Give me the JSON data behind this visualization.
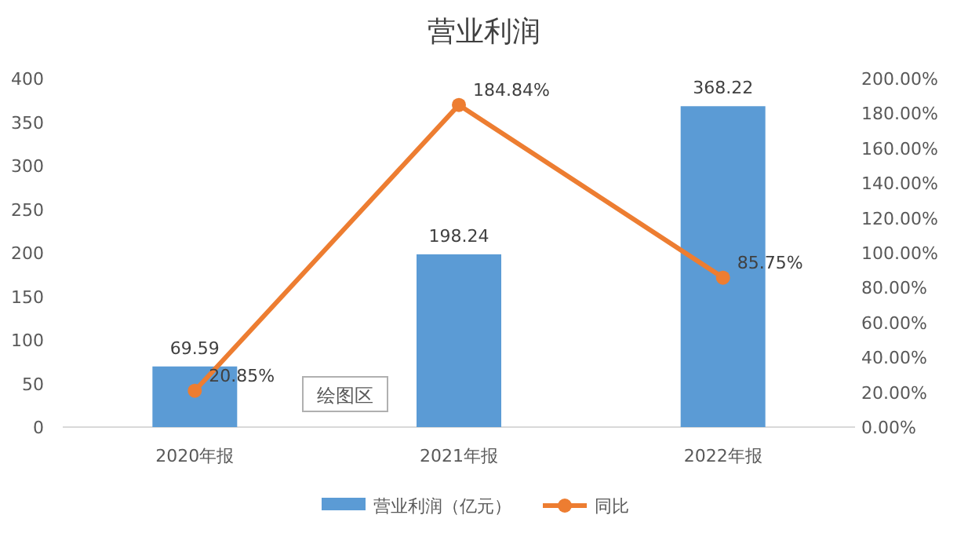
{
  "chart_data": {
    "type": "bar",
    "title": "营业利润",
    "categories": [
      "2020年报",
      "2021年报",
      "2022年报"
    ],
    "series": [
      {
        "name": "营业利润（亿元）",
        "color": "#5b9bd5",
        "values": [
          69.59,
          198.24,
          368.22
        ],
        "value_labels": [
          "69.59",
          "198.24",
          "368.22"
        ]
      },
      {
        "name": "同比",
        "type": "line",
        "axis": "y2",
        "color": "#ed7d31",
        "marker": "circle",
        "values": [
          20.85,
          184.84,
          85.75
        ],
        "value_labels": [
          "20.85%",
          "184.84%",
          "85.75%"
        ]
      }
    ],
    "ylim": [
      0,
      400
    ],
    "yticks": [
      0,
      50,
      100,
      150,
      200,
      250,
      300,
      350,
      400
    ],
    "y2lim": [
      0,
      200
    ],
    "y2ticks": [
      {
        "value": 0,
        "label": "0.00%"
      },
      {
        "value": 20,
        "label": "20.00%"
      },
      {
        "value": 40,
        "label": "40.00%"
      },
      {
        "value": 60,
        "label": "60.00%"
      },
      {
        "value": 80,
        "label": "80.00%"
      },
      {
        "value": 100,
        "label": "100.00%"
      },
      {
        "value": 120,
        "label": "120.00%"
      },
      {
        "value": 140,
        "label": "140.00%"
      },
      {
        "value": 160,
        "label": "160.00%"
      },
      {
        "value": 180,
        "label": "180.00%"
      },
      {
        "value": 200,
        "label": "200.00%"
      }
    ],
    "grid": false,
    "legend": "bottom",
    "annotations": [
      "绘图区"
    ]
  }
}
